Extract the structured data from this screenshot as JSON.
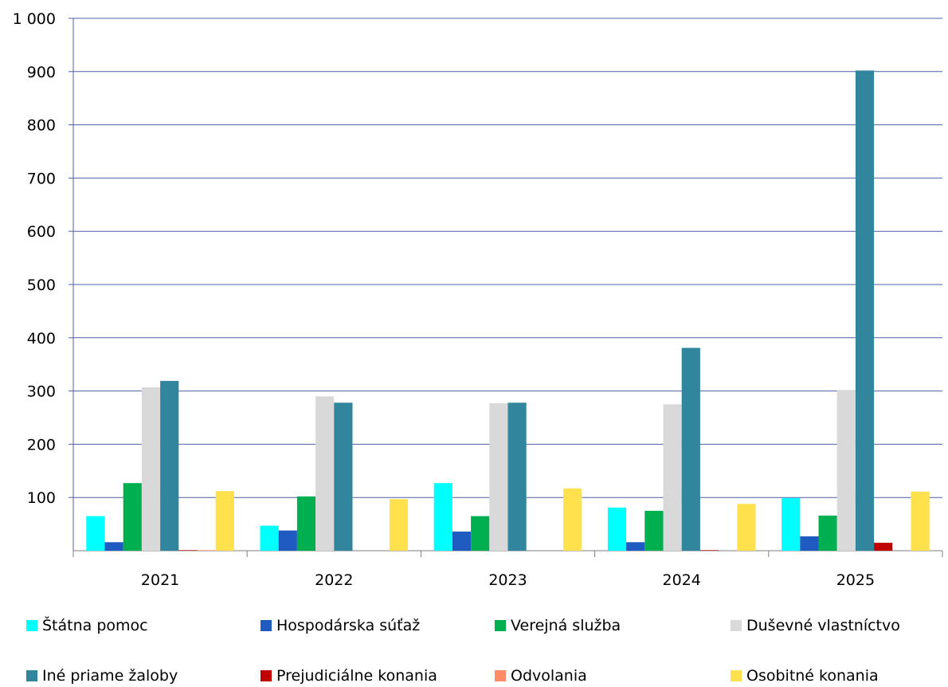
{
  "chart_data": {
    "type": "bar",
    "categories": [
      "2021",
      "2022",
      "2023",
      "2024",
      "2025"
    ],
    "series": [
      {
        "name": "Štátna pomoc",
        "color": "#00FFFF",
        "values": [
          65,
          47,
          127,
          81,
          99
        ]
      },
      {
        "name": "Hospodárska súťaž",
        "color": "#1F5BC1",
        "values": [
          16,
          38,
          36,
          16,
          27
        ]
      },
      {
        "name": "Verejná služba",
        "color": "#00B050",
        "values": [
          127,
          102,
          65,
          75,
          66
        ]
      },
      {
        "name": "Duševné vlastníctvo",
        "color": "#D9D9D9",
        "values": [
          307,
          290,
          277,
          275,
          302
        ]
      },
      {
        "name": "Iné priame žaloby",
        "color": "#31859C",
        "values": [
          319,
          278,
          278,
          381,
          902
        ]
      },
      {
        "name": "Prejudiciálne konania",
        "color": "#C00000",
        "values": [
          1,
          0,
          0,
          1,
          15
        ]
      },
      {
        "name": "Odvolania",
        "color": "#FF8C66",
        "values": [
          1,
          0,
          0,
          0,
          0
        ]
      },
      {
        "name": "Osobitné konania",
        "color": "#FFE14D",
        "values": [
          112,
          97,
          117,
          88,
          111
        ]
      }
    ],
    "yticks": [
      "100",
      "200",
      "300",
      "400",
      "500",
      "600",
      "700",
      "800",
      "900",
      "1 000"
    ],
    "ylim": [
      0,
      1000
    ],
    "grid": true,
    "legend_position": "bottom",
    "title": "",
    "xlabel": "",
    "ylabel": ""
  }
}
